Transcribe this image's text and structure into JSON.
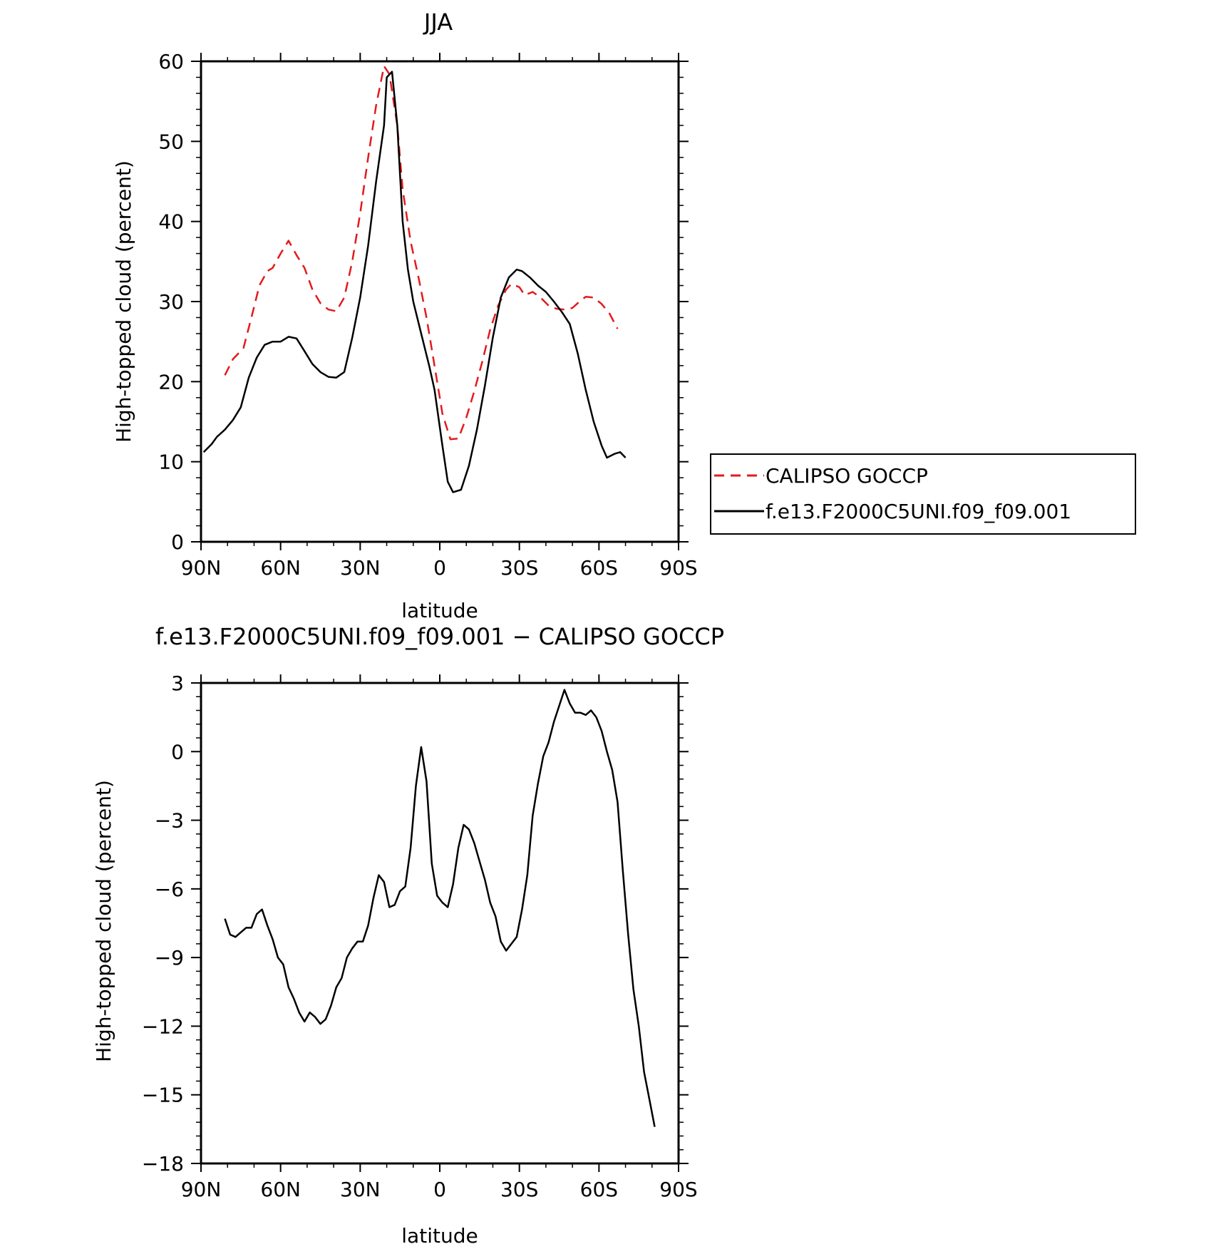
{
  "chart_data": [
    {
      "type": "line",
      "title": "JJA",
      "xlabel": "latitude",
      "ylabel": "High-topped cloud (percent)",
      "xlim": [
        90,
        -90
      ],
      "ylim": [
        0,
        60
      ],
      "xticks": [
        {
          "value": 90,
          "label": "90N"
        },
        {
          "value": 60,
          "label": "60N"
        },
        {
          "value": 30,
          "label": "30N"
        },
        {
          "value": 0,
          "label": "0"
        },
        {
          "value": -30,
          "label": "30S"
        },
        {
          "value": -60,
          "label": "60S"
        },
        {
          "value": -90,
          "label": "90S"
        }
      ],
      "yticks": [
        {
          "value": 0,
          "label": "0"
        },
        {
          "value": 10,
          "label": "10"
        },
        {
          "value": 20,
          "label": "20"
        },
        {
          "value": 30,
          "label": "30"
        },
        {
          "value": 40,
          "label": "40"
        },
        {
          "value": 50,
          "label": "50"
        },
        {
          "value": 60,
          "label": "60"
        }
      ],
      "legend_position": "right",
      "series": [
        {
          "name": "CALIPSO GOCCP",
          "color": "#e31a1c",
          "dash": "dashed",
          "points": [
            [
              81,
              20.8
            ],
            [
              78,
              22.8
            ],
            [
              74,
              24.2
            ],
            [
              71,
              28
            ],
            [
              68,
              32
            ],
            [
              65,
              33.8
            ],
            [
              63,
              34.2
            ],
            [
              60,
              36
            ],
            [
              57,
              37.6
            ],
            [
              54,
              35.8
            ],
            [
              51,
              34.2
            ],
            [
              48,
              31.5
            ],
            [
              45,
              29.8
            ],
            [
              42,
              29
            ],
            [
              39,
              28.8
            ],
            [
              36,
              30.5
            ],
            [
              33,
              35
            ],
            [
              30,
              41
            ],
            [
              27,
              48
            ],
            [
              24,
              54.5
            ],
            [
              21,
              59.4
            ],
            [
              19,
              58.4
            ],
            [
              16,
              52
            ],
            [
              14,
              44
            ],
            [
              11,
              37.5
            ],
            [
              8,
              33
            ],
            [
              5,
              28
            ],
            [
              2,
              22
            ],
            [
              -1,
              16
            ],
            [
              -4,
              12.8
            ],
            [
              -7,
              12.9
            ],
            [
              -10,
              15.5
            ],
            [
              -13,
              18.8
            ],
            [
              -16,
              22.5
            ],
            [
              -19,
              26.5
            ],
            [
              -22,
              29.5
            ],
            [
              -25,
              31.5
            ],
            [
              -27,
              32.2
            ],
            [
              -30,
              31.8
            ],
            [
              -32,
              30.8
            ],
            [
              -35,
              31.2
            ],
            [
              -38,
              30.5
            ],
            [
              -41,
              29.5
            ],
            [
              -44,
              29.1
            ],
            [
              -47,
              29
            ],
            [
              -50,
              29.2
            ],
            [
              -52,
              29.8
            ],
            [
              -55,
              30.6
            ],
            [
              -58,
              30.5
            ],
            [
              -61,
              29.7
            ],
            [
              -64,
              28.5
            ],
            [
              -67,
              26.6
            ]
          ]
        },
        {
          "name": "f.e13.F2000C5UNI.f09_f09.001",
          "color": "#000000",
          "dash": "solid",
          "points": [
            [
              89,
              11.2
            ],
            [
              86,
              12.2
            ],
            [
              84,
              13.1
            ],
            [
              81,
              14
            ],
            [
              78,
              15.2
            ],
            [
              75,
              16.8
            ],
            [
              72,
              20.5
            ],
            [
              69,
              23
            ],
            [
              66,
              24.6
            ],
            [
              63,
              25
            ],
            [
              60,
              25
            ],
            [
              57,
              25.6
            ],
            [
              54,
              25.4
            ],
            [
              51,
              23.8
            ],
            [
              48,
              22.2
            ],
            [
              45,
              21.2
            ],
            [
              42,
              20.6
            ],
            [
              39,
              20.5
            ],
            [
              36,
              21.2
            ],
            [
              33,
              25.5
            ],
            [
              30,
              30.5
            ],
            [
              27,
              37
            ],
            [
              24,
              45
            ],
            [
              21,
              52
            ],
            [
              20,
              58
            ],
            [
              18,
              58.7
            ],
            [
              16,
              52
            ],
            [
              14,
              40
            ],
            [
              12,
              34
            ],
            [
              10,
              30
            ],
            [
              7,
              26
            ],
            [
              4,
              22
            ],
            [
              2,
              19
            ],
            [
              -1,
              12
            ],
            [
              -3,
              7.5
            ],
            [
              -5,
              6.2
            ],
            [
              -8,
              6.5
            ],
            [
              -11,
              9.5
            ],
            [
              -14,
              14
            ],
            [
              -17,
              19.5
            ],
            [
              -20,
              25.5
            ],
            [
              -23,
              30.5
            ],
            [
              -26,
              33
            ],
            [
              -29,
              34
            ],
            [
              -31,
              33.8
            ],
            [
              -34,
              33
            ],
            [
              -37,
              32
            ],
            [
              -40,
              31.2
            ],
            [
              -43,
              30
            ],
            [
              -46,
              28.7
            ],
            [
              -49,
              27.2
            ],
            [
              -52,
              23.5
            ],
            [
              -55,
              19
            ],
            [
              -58,
              15
            ],
            [
              -61,
              12
            ],
            [
              -63,
              10.5
            ],
            [
              -66,
              11
            ],
            [
              -68,
              11.2
            ],
            [
              -70,
              10.5
            ]
          ]
        }
      ]
    },
    {
      "type": "line",
      "title": "f.e13.F2000C5UNI.f09_f09.001 − CALIPSO GOCCP",
      "xlabel": "latitude",
      "ylabel": "High-topped cloud (percent)",
      "xlim": [
        90,
        -90
      ],
      "ylim": [
        -18,
        3
      ],
      "xticks": [
        {
          "value": 90,
          "label": "90N"
        },
        {
          "value": 60,
          "label": "60N"
        },
        {
          "value": 30,
          "label": "30N"
        },
        {
          "value": 0,
          "label": "0"
        },
        {
          "value": -30,
          "label": "30S"
        },
        {
          "value": -60,
          "label": "60S"
        },
        {
          "value": -90,
          "label": "90S"
        }
      ],
      "yticks": [
        {
          "value": 3,
          "label": "3"
        },
        {
          "value": 0,
          "label": "0"
        },
        {
          "value": -3,
          "label": "−3"
        },
        {
          "value": -6,
          "label": "−6"
        },
        {
          "value": -9,
          "label": "−9"
        },
        {
          "value": -12,
          "label": "−12"
        },
        {
          "value": -15,
          "label": "−15"
        },
        {
          "value": -18,
          "label": "−18"
        }
      ],
      "series": [
        {
          "name": "",
          "color": "#000000",
          "dash": "solid",
          "points": [
            [
              81,
              -7.3
            ],
            [
              79,
              -8
            ],
            [
              77,
              -8.1
            ],
            [
              75,
              -7.9
            ],
            [
              73,
              -7.7
            ],
            [
              71,
              -7.7
            ],
            [
              69,
              -7.1
            ],
            [
              67,
              -6.9
            ],
            [
              65,
              -7.6
            ],
            [
              63,
              -8.2
            ],
            [
              61,
              -9
            ],
            [
              59,
              -9.3
            ],
            [
              57,
              -10.3
            ],
            [
              55,
              -10.8
            ],
            [
              53,
              -11.4
            ],
            [
              51,
              -11.8
            ],
            [
              49,
              -11.4
            ],
            [
              47,
              -11.6
            ],
            [
              45,
              -11.9
            ],
            [
              43,
              -11.7
            ],
            [
              41,
              -11.1
            ],
            [
              39,
              -10.3
            ],
            [
              37,
              -9.9
            ],
            [
              35,
              -9
            ],
            [
              33,
              -8.6
            ],
            [
              31,
              -8.3
            ],
            [
              29,
              -8.3
            ],
            [
              27,
              -7.6
            ],
            [
              25,
              -6.4
            ],
            [
              23,
              -5.4
            ],
            [
              21,
              -5.7
            ],
            [
              19,
              -6.8
            ],
            [
              17,
              -6.7
            ],
            [
              15,
              -6.1
            ],
            [
              13,
              -5.9
            ],
            [
              11,
              -4.2
            ],
            [
              9,
              -1.5
            ],
            [
              7,
              0.2
            ],
            [
              5,
              -1.3
            ],
            [
              3,
              -4.9
            ],
            [
              1,
              -6.3
            ],
            [
              -1,
              -6.6
            ],
            [
              -3,
              -6.8
            ],
            [
              -5,
              -5.8
            ],
            [
              -7,
              -4.2
            ],
            [
              -9,
              -3.2
            ],
            [
              -11,
              -3.4
            ],
            [
              -13,
              -4
            ],
            [
              -15,
              -4.8
            ],
            [
              -17,
              -5.6
            ],
            [
              -19,
              -6.6
            ],
            [
              -21,
              -7.2
            ],
            [
              -23,
              -8.3
            ],
            [
              -25,
              -8.7
            ],
            [
              -27,
              -8.4
            ],
            [
              -29,
              -8.1
            ],
            [
              -31,
              -6.9
            ],
            [
              -33,
              -5.4
            ],
            [
              -35,
              -2.8
            ],
            [
              -37,
              -1.4
            ],
            [
              -39,
              -0.2
            ],
            [
              -41,
              0.4
            ],
            [
              -43,
              1.3
            ],
            [
              -45,
              2
            ],
            [
              -47,
              2.7
            ],
            [
              -49,
              2.1
            ],
            [
              -51,
              1.7
            ],
            [
              -53,
              1.7
            ],
            [
              -55,
              1.6
            ],
            [
              -57,
              1.8
            ],
            [
              -59,
              1.5
            ],
            [
              -61,
              0.9
            ],
            [
              -63,
              0
            ],
            [
              -65,
              -0.8
            ],
            [
              -67,
              -2.2
            ],
            [
              -69,
              -5.2
            ],
            [
              -71,
              -8
            ],
            [
              -73,
              -10.4
            ],
            [
              -75,
              -12
            ],
            [
              -77,
              -14
            ],
            [
              -79,
              -15.2
            ],
            [
              -81,
              -16.4
            ]
          ]
        }
      ]
    }
  ]
}
